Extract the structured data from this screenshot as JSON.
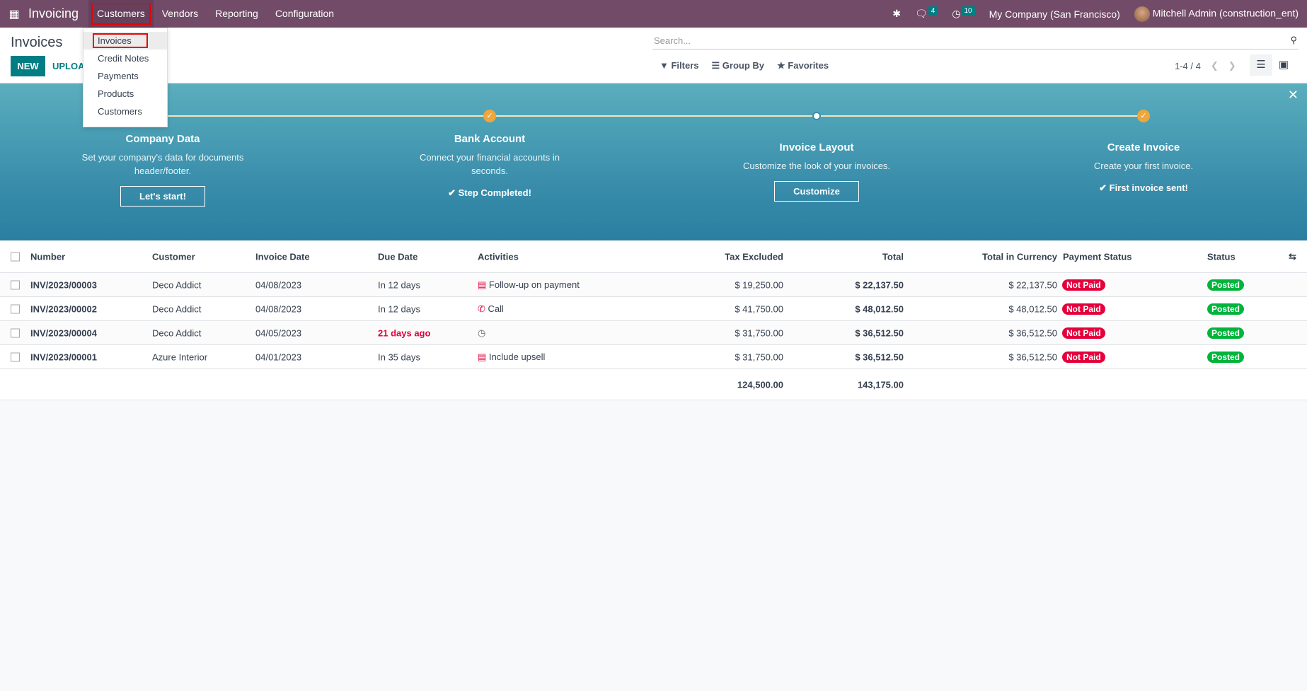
{
  "navbar": {
    "app_name": "Invoicing",
    "menus": [
      "Customers",
      "Vendors",
      "Reporting",
      "Configuration"
    ],
    "active_menu": "Customers",
    "messages_count": "4",
    "activities_count": "10",
    "company": "My Company (San Francisco)",
    "user": "Mitchell Admin (construction_ent)"
  },
  "dropdown": {
    "items": [
      "Invoices",
      "Credit Notes",
      "Payments",
      "Products",
      "Customers"
    ],
    "selected": "Invoices"
  },
  "control_panel": {
    "title": "Invoices",
    "new_label": "NEW",
    "upload_label": "UPLOAD",
    "search_placeholder": "Search...",
    "filters": "Filters",
    "group_by": "Group By",
    "favorites": "Favorites",
    "pager": "1-4 / 4"
  },
  "banner": {
    "steps": [
      {
        "title": "Company Data",
        "description": "Set your company's data for documents header/footer.",
        "button": "Let's start!",
        "state": "todo"
      },
      {
        "title": "Bank Account",
        "description": "Connect your financial accounts in seconds.",
        "done_text": "Step Completed!",
        "state": "done"
      },
      {
        "title": "Invoice Layout",
        "description": "Customize the look of your invoices.",
        "button": "Customize",
        "state": "current"
      },
      {
        "title": "Create Invoice",
        "description": "Create your first invoice.",
        "done_text": "First invoice sent!",
        "state": "done"
      }
    ]
  },
  "table": {
    "columns": [
      "Number",
      "Customer",
      "Invoice Date",
      "Due Date",
      "Activities",
      "Tax Excluded",
      "Total",
      "Total in Currency",
      "Payment Status",
      "Status"
    ],
    "rows": [
      {
        "number": "INV/2023/00003",
        "customer": "Deco Addict",
        "invoice_date": "04/08/2023",
        "due_date": "In 12 days",
        "activity_icon": "list-icon",
        "activity": "Follow-up on payment",
        "tax_excluded": "$ 19,250.00",
        "total": "$ 22,137.50",
        "total_currency": "$ 22,137.50",
        "payment_status": "Not Paid",
        "status": "Posted"
      },
      {
        "number": "INV/2023/00002",
        "customer": "Deco Addict",
        "invoice_date": "04/08/2023",
        "due_date": "In 12 days",
        "activity_icon": "phone-icon",
        "activity": "Call",
        "tax_excluded": "$ 41,750.00",
        "total": "$ 48,012.50",
        "total_currency": "$ 48,012.50",
        "payment_status": "Not Paid",
        "status": "Posted"
      },
      {
        "number": "INV/2023/00004",
        "customer": "Deco Addict",
        "invoice_date": "04/05/2023",
        "due_date": "21 days ago",
        "overdue": true,
        "activity_icon": "clock-icon",
        "activity": "",
        "tax_excluded": "$ 31,750.00",
        "total": "$ 36,512.50",
        "total_currency": "$ 36,512.50",
        "payment_status": "Not Paid",
        "status": "Posted"
      },
      {
        "number": "INV/2023/00001",
        "customer": "Azure Interior",
        "invoice_date": "04/01/2023",
        "due_date": "In 35 days",
        "activity_icon": "list-icon",
        "activity": "Include upsell",
        "tax_excluded": "$ 31,750.00",
        "total": "$ 36,512.50",
        "total_currency": "$ 36,512.50",
        "payment_status": "Not Paid",
        "status": "Posted"
      }
    ],
    "totals": {
      "tax_excluded": "124,500.00",
      "total": "143,175.00"
    }
  },
  "colors": {
    "navbar": "#714b67",
    "primary": "#017e84",
    "not_paid": "#e4003b",
    "posted": "#00b43c",
    "overdue": "#e4003b"
  }
}
